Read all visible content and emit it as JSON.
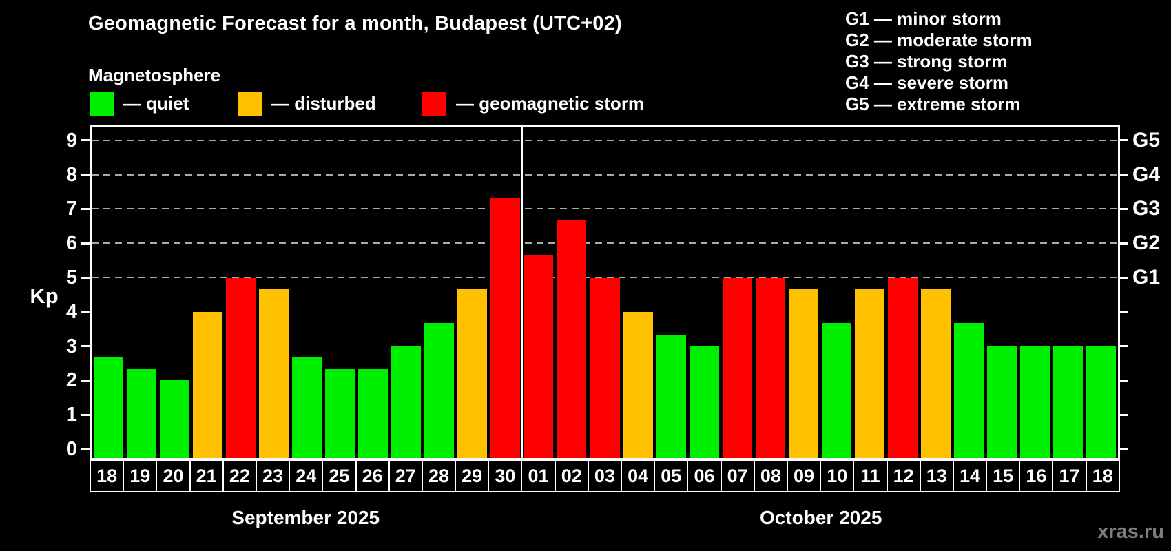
{
  "header": {
    "title": "Geomagnetic Forecast for a month, Budapest (UTC+02)",
    "subtitle": "Magnetosphere"
  },
  "colors": {
    "quiet": "#00ee00",
    "disturbed": "#ffc000",
    "storm": "#ff0000",
    "grid": "#aaaaaa",
    "frame": "#ffffff",
    "background": "#000000",
    "watermark_text": "#7d7d7d"
  },
  "legend": [
    {
      "key": "quiet",
      "label": "— quiet",
      "color": "#00ee00"
    },
    {
      "key": "disturbed",
      "label": "— disturbed",
      "color": "#ffc000"
    },
    {
      "key": "storm",
      "label": "— geomagnetic storm",
      "color": "#ff0000"
    }
  ],
  "storm_scale": [
    {
      "code": "G1",
      "kp": 5,
      "label": "G1 — minor storm"
    },
    {
      "code": "G2",
      "kp": 6,
      "label": "G2 — moderate storm"
    },
    {
      "code": "G3",
      "kp": 7,
      "label": "G3 — strong storm"
    },
    {
      "code": "G4",
      "kp": 8,
      "label": "G4 — severe storm"
    },
    {
      "code": "G5",
      "kp": 9,
      "label": "G5 — extreme storm"
    }
  ],
  "watermark": "xras.ru",
  "chart_data": {
    "type": "bar",
    "ylabel_left": "Kp",
    "ylim": [
      0,
      9
    ],
    "y_ticks": [
      0,
      1,
      2,
      3,
      4,
      5,
      6,
      7,
      8,
      9
    ],
    "gridlines_at": [
      5,
      6,
      7,
      8,
      9
    ],
    "grid": "dashed",
    "legend_position": "top",
    "months": [
      {
        "label": "September 2025",
        "days": 13
      },
      {
        "label": "October 2025",
        "days": 18
      }
    ],
    "bars": [
      {
        "day": "18",
        "kp": 2.67,
        "status": "quiet"
      },
      {
        "day": "19",
        "kp": 2.33,
        "status": "quiet"
      },
      {
        "day": "20",
        "kp": 2.0,
        "status": "quiet"
      },
      {
        "day": "21",
        "kp": 4.0,
        "status": "disturbed"
      },
      {
        "day": "22",
        "kp": 5.0,
        "status": "storm"
      },
      {
        "day": "23",
        "kp": 4.67,
        "status": "disturbed"
      },
      {
        "day": "24",
        "kp": 2.67,
        "status": "quiet"
      },
      {
        "day": "25",
        "kp": 2.33,
        "status": "quiet"
      },
      {
        "day": "26",
        "kp": 2.33,
        "status": "quiet"
      },
      {
        "day": "27",
        "kp": 3.0,
        "status": "quiet"
      },
      {
        "day": "28",
        "kp": 3.67,
        "status": "quiet"
      },
      {
        "day": "29",
        "kp": 4.67,
        "status": "disturbed"
      },
      {
        "day": "30",
        "kp": 7.33,
        "status": "storm"
      },
      {
        "day": "01",
        "kp": 5.67,
        "status": "storm"
      },
      {
        "day": "02",
        "kp": 6.67,
        "status": "storm"
      },
      {
        "day": "03",
        "kp": 5.0,
        "status": "storm"
      },
      {
        "day": "04",
        "kp": 4.0,
        "status": "disturbed"
      },
      {
        "day": "05",
        "kp": 3.33,
        "status": "quiet"
      },
      {
        "day": "06",
        "kp": 3.0,
        "status": "quiet"
      },
      {
        "day": "07",
        "kp": 5.0,
        "status": "storm"
      },
      {
        "day": "08",
        "kp": 5.0,
        "status": "storm"
      },
      {
        "day": "09",
        "kp": 4.67,
        "status": "disturbed"
      },
      {
        "day": "10",
        "kp": 3.67,
        "status": "quiet"
      },
      {
        "day": "11",
        "kp": 4.67,
        "status": "disturbed"
      },
      {
        "day": "12",
        "kp": 5.0,
        "status": "storm"
      },
      {
        "day": "13",
        "kp": 4.67,
        "status": "disturbed"
      },
      {
        "day": "14",
        "kp": 3.67,
        "status": "quiet"
      },
      {
        "day": "15",
        "kp": 3.0,
        "status": "quiet"
      },
      {
        "day": "16",
        "kp": 3.0,
        "status": "quiet"
      },
      {
        "day": "17",
        "kp": 3.0,
        "status": "quiet"
      },
      {
        "day": "18",
        "kp": 3.0,
        "status": "quiet"
      }
    ]
  }
}
